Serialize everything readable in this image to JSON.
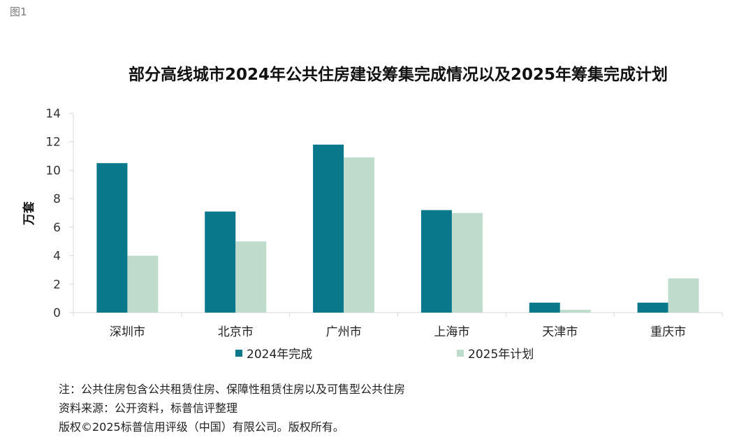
{
  "figure_label": "图1",
  "chart_data": {
    "type": "bar",
    "title": "部分高线城市2024年公共住房建设筹集完成情况以及2025年筹集完成计划",
    "ylabel": "万套",
    "xlabel": "",
    "ylim": [
      0,
      14
    ],
    "yticks": [
      0,
      2,
      4,
      6,
      8,
      10,
      12,
      14
    ],
    "grid": false,
    "legend_position": "bottom",
    "categories": [
      "深圳市",
      "北京市",
      "广州市",
      "上海市",
      "天津市",
      "重庆市"
    ],
    "series": [
      {
        "name": "2024年完成",
        "color": "#0a788b",
        "values": [
          10.5,
          7.1,
          11.8,
          7.2,
          0.7,
          0.7
        ]
      },
      {
        "name": "2025年计划",
        "color": "#bfdbcc",
        "values": [
          4.0,
          5.0,
          10.9,
          7.0,
          0.2,
          2.4
        ]
      }
    ]
  },
  "notes": [
    "注：公共住房包含公共租赁住房、保障性租赁住房以及可售型公共住房",
    "资料来源：公开资料，标普信评整理",
    "版权©2025标普信用评级（中国）有限公司。版权所有。"
  ]
}
